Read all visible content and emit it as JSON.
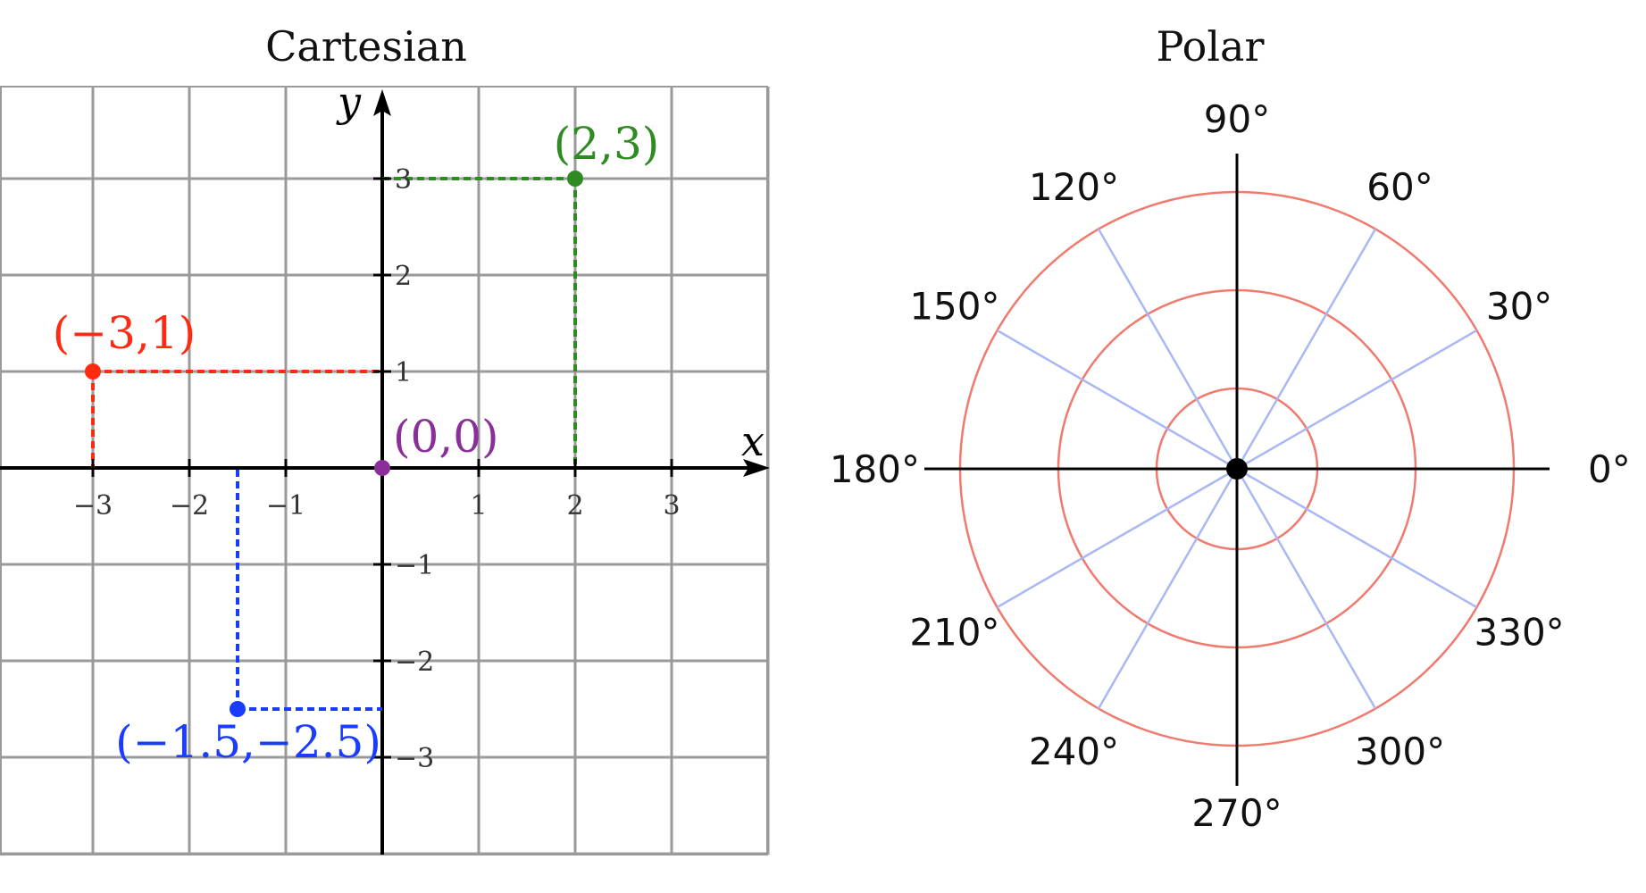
{
  "cartesian": {
    "title": "Cartesian",
    "x_axis_label": "x",
    "y_axis_label": "y",
    "x_range": [
      -4,
      4
    ],
    "y_range": [
      -4,
      4
    ],
    "x_tick_values": [
      -3,
      -2,
      -1,
      1,
      2,
      3
    ],
    "x_tick_labels": [
      "−3",
      "−2",
      "−1",
      "1",
      "2",
      "3"
    ],
    "y_tick_values": [
      3,
      2,
      1,
      -1,
      -2,
      -3
    ],
    "y_tick_labels": [
      "3",
      "2",
      "1",
      "−1",
      "−2",
      "−3"
    ],
    "points": [
      {
        "x": 2,
        "y": 3,
        "label": "(2,3)",
        "color": "#2e8b22"
      },
      {
        "x": -3,
        "y": 1,
        "label": "(−3,1)",
        "color": "#ff2a12"
      },
      {
        "x": 0,
        "y": 0,
        "label": "(0,0)",
        "color": "#8a2f9a"
      },
      {
        "x": -1.5,
        "y": -2.5,
        "label": "(−1.5,−2.5)",
        "color": "#1a3cff"
      }
    ],
    "grid": true
  },
  "polar": {
    "title": "Polar",
    "angle_labels": [
      {
        "deg": 0,
        "label": "0°"
      },
      {
        "deg": 30,
        "label": "30°"
      },
      {
        "deg": 60,
        "label": "60°"
      },
      {
        "deg": 90,
        "label": "90°"
      },
      {
        "deg": 120,
        "label": "120°"
      },
      {
        "deg": 150,
        "label": "150°"
      },
      {
        "deg": 180,
        "label": "180°"
      },
      {
        "deg": 210,
        "label": "210°"
      },
      {
        "deg": 240,
        "label": "240°"
      },
      {
        "deg": 270,
        "label": "270°"
      },
      {
        "deg": 300,
        "label": "300°"
      },
      {
        "deg": 330,
        "label": "330°"
      }
    ],
    "ring_radii": [
      1,
      2,
      3
    ],
    "circle_color": "#f07a6e",
    "ray_color": "#a9b7f5",
    "axis_color": "#000000"
  }
}
